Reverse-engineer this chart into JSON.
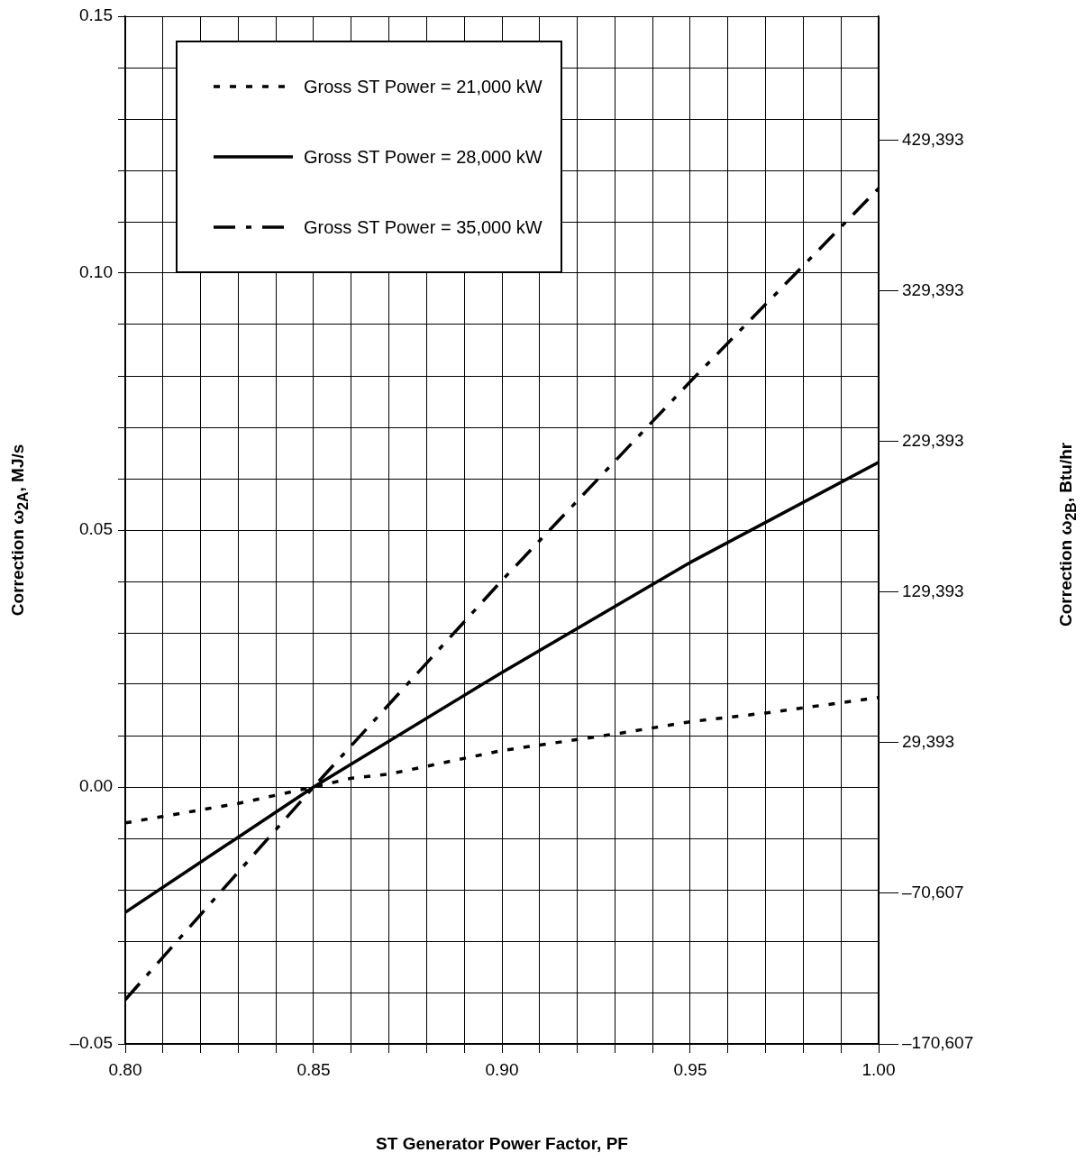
{
  "chart_data": {
    "type": "line",
    "xlabel": "ST Generator Power Factor, PF",
    "ylabel": "Correction ω$_{2A}$, MJ/s",
    "y2label": "Correction ω$_{2B}$, Btu/hr",
    "series": [
      {
        "name": "Gross ST Power = 21,000 kW",
        "color": "#000000",
        "line_style": "dotted",
        "x": [
          0.8,
          0.83,
          0.85,
          0.86,
          0.87,
          0.9,
          0.93,
          0.95,
          0.97,
          1.0
        ],
        "values": [
          -0.007,
          -0.0032,
          0.0,
          0.0017,
          0.0025,
          0.0071,
          0.0103,
          0.0127,
          0.0144,
          0.0174
        ]
      },
      {
        "name": "Gross ST Power = 28,000 kW",
        "color": "#000000",
        "line_style": "solid",
        "x": [
          0.8,
          0.85,
          0.9,
          0.95,
          1.0
        ],
        "values": [
          -0.0244,
          0.0,
          0.0223,
          0.0437,
          0.0632
        ]
      },
      {
        "name": "Gross ST Power = 35,000 kW",
        "color": "#000000",
        "line_style": "dashed",
        "x": [
          0.8,
          0.85,
          0.9,
          0.95,
          1.0
        ],
        "values": [
          -0.0414,
          0.0,
          0.0402,
          0.0789,
          0.1165
        ]
      }
    ],
    "xlim": [
      0.8,
      1.0
    ],
    "xticks": [
      {
        "value": 0.8,
        "label": "0.80"
      },
      {
        "value": 0.81,
        "label": null
      },
      {
        "value": 0.82,
        "label": null
      },
      {
        "value": 0.83,
        "label": null
      },
      {
        "value": 0.84,
        "label": null
      },
      {
        "value": 0.85,
        "label": "0.85"
      },
      {
        "value": 0.86,
        "label": null
      },
      {
        "value": 0.87,
        "label": null
      },
      {
        "value": 0.88,
        "label": null
      },
      {
        "value": 0.89,
        "label": null
      },
      {
        "value": 0.9,
        "label": "0.90"
      },
      {
        "value": 0.91,
        "label": null
      },
      {
        "value": 0.92,
        "label": null
      },
      {
        "value": 0.93,
        "label": null
      },
      {
        "value": 0.94,
        "label": null
      },
      {
        "value": 0.95,
        "label": "0.95"
      },
      {
        "value": 0.96,
        "label": null
      },
      {
        "value": 0.97,
        "label": null
      },
      {
        "value": 0.98,
        "label": null
      },
      {
        "value": 0.99,
        "label": null
      },
      {
        "value": 1.0,
        "label": "1.00"
      }
    ],
    "ylim": [
      -0.05,
      0.15
    ],
    "yticks": [
      {
        "value": -0.05,
        "label": "–0.05"
      },
      {
        "value": -0.04,
        "label": null
      },
      {
        "value": -0.03,
        "label": null
      },
      {
        "value": -0.02,
        "label": null
      },
      {
        "value": -0.01,
        "label": null
      },
      {
        "value": 0.0,
        "label": "0.00"
      },
      {
        "value": 0.01,
        "label": null
      },
      {
        "value": 0.02,
        "label": null
      },
      {
        "value": 0.03,
        "label": null
      },
      {
        "value": 0.04,
        "label": null
      },
      {
        "value": 0.05,
        "label": "0.05"
      },
      {
        "value": 0.06,
        "label": null
      },
      {
        "value": 0.07,
        "label": null
      },
      {
        "value": 0.08,
        "label": null
      },
      {
        "value": 0.09,
        "label": null
      },
      {
        "value": 0.1,
        "label": "0.10"
      },
      {
        "value": 0.11,
        "label": null
      },
      {
        "value": 0.12,
        "label": null
      },
      {
        "value": 0.13,
        "label": null
      },
      {
        "value": 0.14,
        "label": null
      },
      {
        "value": 0.15,
        "label": "0.15"
      }
    ],
    "y2lim": [
      -170607,
      511821
    ],
    "y2ticks": [
      {
        "value": -170607,
        "label": "–170,607"
      },
      {
        "value": -70607,
        "label": "–70,607"
      },
      {
        "value": 29393,
        "label": "29,393"
      },
      {
        "value": 129393,
        "label": "129,393"
      },
      {
        "value": 229393,
        "label": "229,393"
      },
      {
        "value": 329393,
        "label": "329,393"
      },
      {
        "value": 429393,
        "label": "429,393"
      }
    ],
    "grid": true,
    "legend": "top left",
    "marker": "none"
  }
}
